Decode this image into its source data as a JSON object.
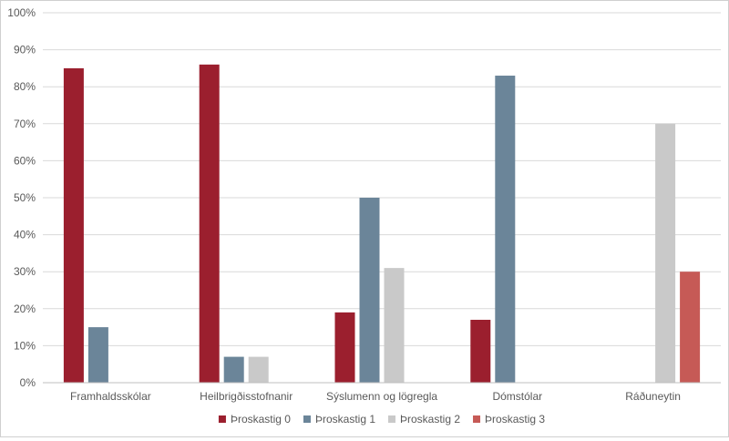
{
  "chart_data": {
    "type": "bar",
    "title": "",
    "xlabel": "",
    "ylabel": "",
    "categories": [
      "Framhaldsskólar",
      "Heilbrigðisstofnanir",
      "Sýslumenn og lögregla",
      "Dómstólar",
      "Ráðuneytin"
    ],
    "series": [
      {
        "name": "Þroskastig 0",
        "color": "#9b1f2e",
        "values": [
          85,
          86,
          19,
          17,
          null
        ]
      },
      {
        "name": "Þroskastig 1",
        "color": "#6b8599",
        "values": [
          15,
          7,
          50,
          83,
          null
        ]
      },
      {
        "name": "Þroskastig 2",
        "color": "#c9c9c9",
        "values": [
          null,
          7,
          31,
          null,
          70
        ]
      },
      {
        "name": "Þroskastig 3",
        "color": "#c65a56",
        "values": [
          null,
          null,
          null,
          null,
          30
        ]
      }
    ],
    "ylim": [
      0,
      100
    ],
    "yticks": [
      0,
      10,
      20,
      30,
      40,
      50,
      60,
      70,
      80,
      90,
      100
    ],
    "ytick_labels": [
      "0%",
      "10%",
      "20%",
      "30%",
      "40%",
      "50%",
      "60%",
      "70%",
      "80%",
      "90%",
      "100%"
    ],
    "grid": true,
    "legend_position": "bottom",
    "grid_color": "#d9d9d9",
    "axis_color": "#bfbfbf"
  }
}
